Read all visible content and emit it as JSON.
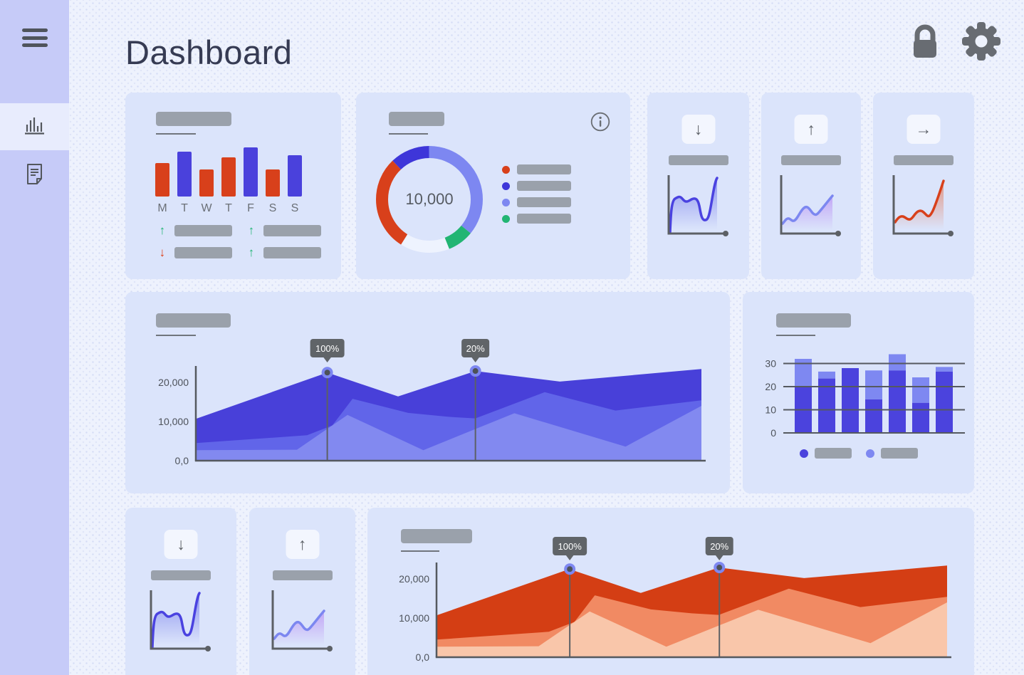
{
  "header": {
    "title": "Dashboard",
    "actions": [
      {
        "id": "lock",
        "icon": "lock-icon"
      },
      {
        "id": "settings",
        "icon": "gear-icon"
      }
    ]
  },
  "sidebar": {
    "menu_icon": "hamburger-menu-icon",
    "items": [
      {
        "id": "analytics",
        "icon": "bar-chart-icon",
        "active": true
      },
      {
        "id": "documents",
        "icon": "document-icon",
        "active": false
      }
    ]
  },
  "colors": {
    "sidebar_bg": "#c6cbf8",
    "sidebar_active_bg": "#e8ecfd",
    "main_bg": "#eef2fd",
    "card_bg": "#dbe4fb",
    "placeholder": "#9aa1ab",
    "underline": "#70757d",
    "axis": "#55595f",
    "tick_text": "#4d525a",
    "title_text": "#363b53",
    "icon_gray": "#686c72",
    "tooltip_bg": "#606468",
    "marker_ring": "#7d87f1",
    "red": "#d8401b",
    "blue": "#4a41dc",
    "green": "#1fb573"
  },
  "cards": {
    "weekly_bars": {
      "type": "bar",
      "days": [
        "M",
        "T",
        "W",
        "T",
        "F",
        "S",
        "S"
      ],
      "values": [
        47,
        63,
        38,
        55,
        69,
        38,
        58
      ],
      "bar_colors": [
        "#d8401b",
        "#4a41dc",
        "#d8401b",
        "#d8401b",
        "#4a41dc",
        "#d8401b",
        "#4a41dc"
      ],
      "stats": [
        {
          "direction": "up",
          "char": "↑",
          "color": "#1fb573"
        },
        {
          "direction": "up",
          "char": "↑",
          "color": "#1fb573"
        },
        {
          "direction": "down",
          "char": "↓",
          "color": "#dd3f17"
        },
        {
          "direction": "up",
          "char": "↑",
          "color": "#1fb573"
        }
      ]
    },
    "donut": {
      "type": "donut",
      "center_label": "10,000",
      "segments": [
        {
          "name": "periwinkle",
          "color": "#7d87f1",
          "value": 36
        },
        {
          "name": "green",
          "color": "#22b573",
          "value": 8
        },
        {
          "name": "pale",
          "color": "#eef3fe",
          "value": 15
        },
        {
          "name": "red",
          "color": "#d8401b",
          "value": 29
        },
        {
          "name": "dark-blue",
          "color": "#3e36d9",
          "value": 12
        }
      ],
      "legend": [
        "#d8401b",
        "#3e36d9",
        "#7d87f1",
        "#22b573"
      ],
      "info_icon": "info-icon"
    },
    "kpi_cards": [
      {
        "id": "kpi-down",
        "arrow": "down",
        "arrow_char": "↓",
        "chart": "blue-wave",
        "line": "#4a42e0",
        "fill": "#5a60e8"
      },
      {
        "id": "kpi-up",
        "arrow": "up",
        "arrow_char": "↑",
        "chart": "purple-rise",
        "line": "#7c87f0",
        "fill": "#b27df2"
      },
      {
        "id": "kpi-right",
        "arrow": "right",
        "arrow_char": "→",
        "chart": "red-rise",
        "line": "#d8401b",
        "fill": "#e4653c"
      }
    ],
    "area_blue": {
      "type": "area",
      "y_ticks": [
        {
          "label": "20,000",
          "value": 20000
        },
        {
          "label": "10,000",
          "value": 10000
        },
        {
          "label": "0,0",
          "value": 0
        }
      ],
      "markers": [
        {
          "label": "100%",
          "x": 0.26,
          "value": 22500
        },
        {
          "label": "20%",
          "x": 0.553,
          "value": 22900
        }
      ],
      "layers": [
        {
          "name": "dark",
          "color": "#4840d9",
          "points": [
            [
              0,
              10700
            ],
            [
              0.26,
              22500
            ],
            [
              0.4,
              16400
            ],
            [
              0.553,
              22900
            ],
            [
              0.72,
              20200
            ],
            [
              1,
              23400
            ]
          ]
        },
        {
          "name": "mid",
          "color": "#6165e9",
          "points": [
            [
              0,
              4500
            ],
            [
              0.22,
              6500
            ],
            [
              0.27,
              9000
            ],
            [
              0.31,
              15800
            ],
            [
              0.42,
              12200
            ],
            [
              0.5,
              11200
            ],
            [
              0.553,
              10800
            ],
            [
              0.69,
              17500
            ],
            [
              0.83,
              12800
            ],
            [
              1,
              15400
            ]
          ]
        },
        {
          "name": "light",
          "color": "#8289f0",
          "points": [
            [
              0,
              2700
            ],
            [
              0.2,
              2800
            ],
            [
              0.3,
              11700
            ],
            [
              0.45,
              2700
            ],
            [
              0.63,
              12100
            ],
            [
              0.85,
              3600
            ],
            [
              1,
              14000
            ]
          ]
        }
      ]
    },
    "stacked_bars": {
      "type": "stacked-bar",
      "y_ticks": [
        "30",
        "20",
        "10",
        "0"
      ],
      "series": [
        {
          "name": "primary",
          "color": "#4b43dd",
          "values": [
            20,
            23.5,
            28,
            14.5,
            27,
            13,
            26.5
          ]
        },
        {
          "name": "secondary",
          "color": "#7e88f1",
          "values": [
            12,
            3,
            0,
            12.5,
            7,
            11,
            2
          ]
        }
      ],
      "legend": [
        "#4b43dd",
        "#7e88f1"
      ]
    },
    "area_red": {
      "type": "area",
      "y_ticks": [
        {
          "label": "20,000",
          "value": 20000
        },
        {
          "label": "10,000",
          "value": 10000
        },
        {
          "label": "0,0",
          "value": 0
        }
      ],
      "markers": [
        {
          "label": "100%",
          "x": 0.261,
          "value": 22500
        },
        {
          "label": "20%",
          "x": 0.554,
          "value": 22900
        }
      ],
      "layers": [
        {
          "name": "dark",
          "color": "#d43e14",
          "points": [
            [
              0,
              10700
            ],
            [
              0.26,
              22500
            ],
            [
              0.4,
              16400
            ],
            [
              0.553,
              22900
            ],
            [
              0.72,
              20200
            ],
            [
              1,
              23400
            ]
          ]
        },
        {
          "name": "mid",
          "color": "#f18a63",
          "points": [
            [
              0,
              4500
            ],
            [
              0.22,
              6500
            ],
            [
              0.27,
              9000
            ],
            [
              0.31,
              15800
            ],
            [
              0.42,
              12200
            ],
            [
              0.5,
              11200
            ],
            [
              0.553,
              10800
            ],
            [
              0.69,
              17500
            ],
            [
              0.83,
              12800
            ],
            [
              1,
              15400
            ]
          ]
        },
        {
          "name": "light",
          "color": "#f9c6aa",
          "points": [
            [
              0,
              2700
            ],
            [
              0.2,
              2800
            ],
            [
              0.3,
              11700
            ],
            [
              0.45,
              2700
            ],
            [
              0.63,
              12100
            ],
            [
              0.85,
              3600
            ],
            [
              1,
              14000
            ]
          ]
        }
      ]
    }
  }
}
